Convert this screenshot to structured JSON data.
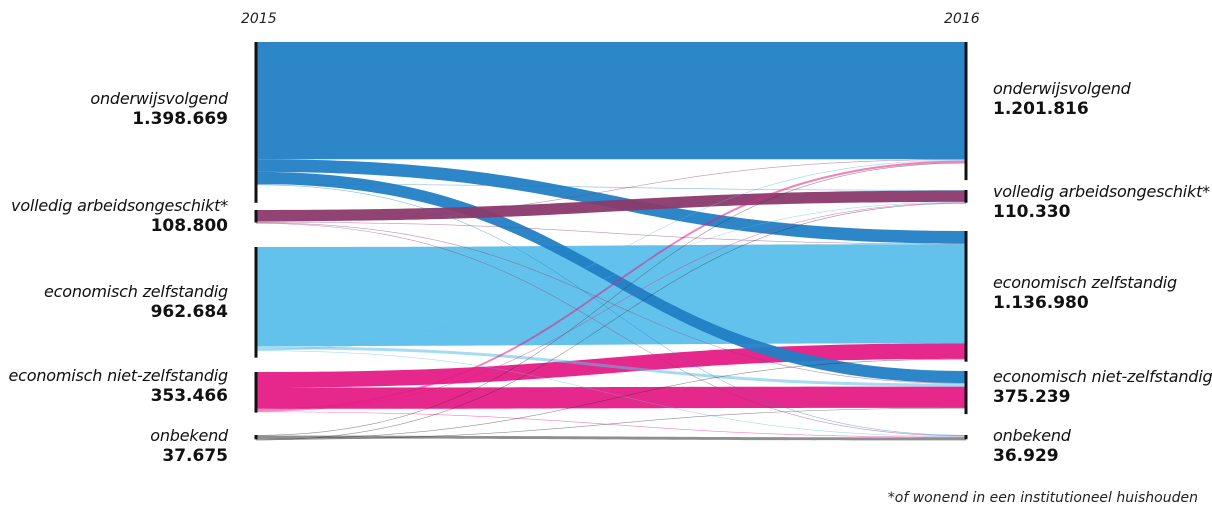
{
  "chart_data": {
    "type": "sankey",
    "left_label": "2015",
    "right_label": "2016",
    "categories": [
      "onderwijsvolgend",
      "volledig arbeidsongeschikt*",
      "economisch zelfstandig",
      "economisch niet-zelfstandig",
      "onbekend"
    ],
    "left_values": [
      "1.398.669",
      "108.800",
      "962.684",
      "353.466",
      "37.675"
    ],
    "right_values": [
      "1.201.816",
      "110.330",
      "1.136.980",
      "375.239",
      "36.929"
    ],
    "left_totals": [
      1398669,
      108800,
      962684,
      353466,
      37675
    ],
    "right_totals": [
      1201816,
      110330,
      1136980,
      375239,
      36929
    ],
    "colors": [
      "#2180c5",
      "#8b3a6b",
      "#5bbfea",
      "#e51b86",
      "#333333"
    ],
    "flows": [
      {
        "from": 0,
        "to": 0,
        "value": 1020000
      },
      {
        "from": 0,
        "to": 2,
        "value": 110000
      },
      {
        "from": 0,
        "to": 3,
        "value": 105000
      },
      {
        "from": 0,
        "to": 1,
        "value": 4000
      },
      {
        "from": 0,
        "to": 4,
        "value": 4000
      },
      {
        "from": 1,
        "to": 1,
        "value": 98000
      },
      {
        "from": 1,
        "to": 0,
        "value": 1200
      },
      {
        "from": 1,
        "to": 2,
        "value": 1200
      },
      {
        "from": 1,
        "to": 3,
        "value": 4800
      },
      {
        "from": 1,
        "to": 4,
        "value": 800
      },
      {
        "from": 2,
        "to": 2,
        "value": 862000
      },
      {
        "from": 2,
        "to": 3,
        "value": 26000
      },
      {
        "from": 2,
        "to": 0,
        "value": 6000
      },
      {
        "from": 2,
        "to": 1,
        "value": 3500
      },
      {
        "from": 2,
        "to": 4,
        "value": 3500
      },
      {
        "from": 3,
        "to": 2,
        "value": 135000
      },
      {
        "from": 3,
        "to": 3,
        "value": 185000
      },
      {
        "from": 3,
        "to": 0,
        "value": 19000
      },
      {
        "from": 3,
        "to": 1,
        "value": 3500
      },
      {
        "from": 3,
        "to": 4,
        "value": 3000
      },
      {
        "from": 4,
        "to": 0,
        "value": 3000
      },
      {
        "from": 4,
        "to": 4,
        "value": 26000
      },
      {
        "from": 4,
        "to": 2,
        "value": 2000
      },
      {
        "from": 4,
        "to": 3,
        "value": 2500
      },
      {
        "from": 4,
        "to": 1,
        "value": 500
      }
    ]
  },
  "footnote": "*of wonend in een institutioneel huishouden"
}
